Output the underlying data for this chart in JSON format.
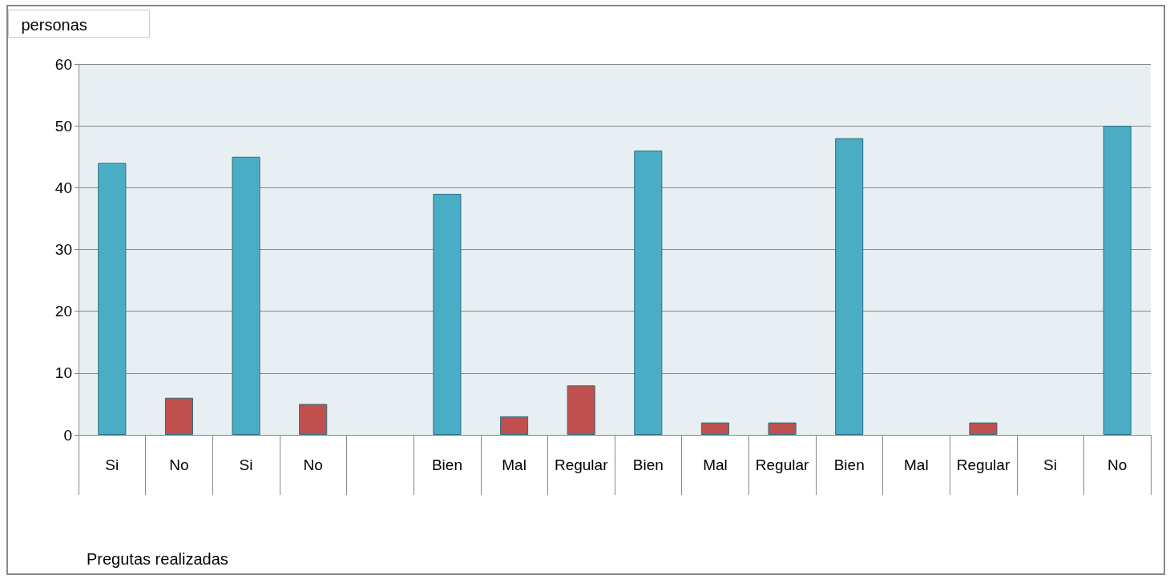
{
  "chart_data": {
    "type": "bar",
    "ylabel": "personas",
    "xlabel": "Pregutas realizadas",
    "categories": [
      "Si",
      "No",
      "Si",
      "No",
      null,
      "Bien",
      "Mal",
      "Regular",
      "Bien",
      "Mal",
      "Regular",
      "Bien",
      "Mal",
      "Regular",
      "Si",
      "No"
    ],
    "values": [
      44,
      6,
      45,
      5,
      null,
      39,
      3,
      8,
      46,
      2,
      2,
      48,
      null,
      2,
      null,
      50
    ],
    "colors": [
      "#4bacc6",
      "#c0504d",
      "#4bacc6",
      "#c0504d",
      "#4bacc6",
      "#4bacc6",
      "#c0504d",
      "#c0504d",
      "#4bacc6",
      "#c0504d",
      "#c0504d",
      "#4bacc6",
      "#c0504d",
      "#c0504d",
      "#4bacc6",
      "#4bacc6"
    ],
    "ylim": [
      0,
      60
    ],
    "yticks": [
      0,
      10,
      20,
      30,
      40,
      50,
      60
    ],
    "grid": "y"
  }
}
